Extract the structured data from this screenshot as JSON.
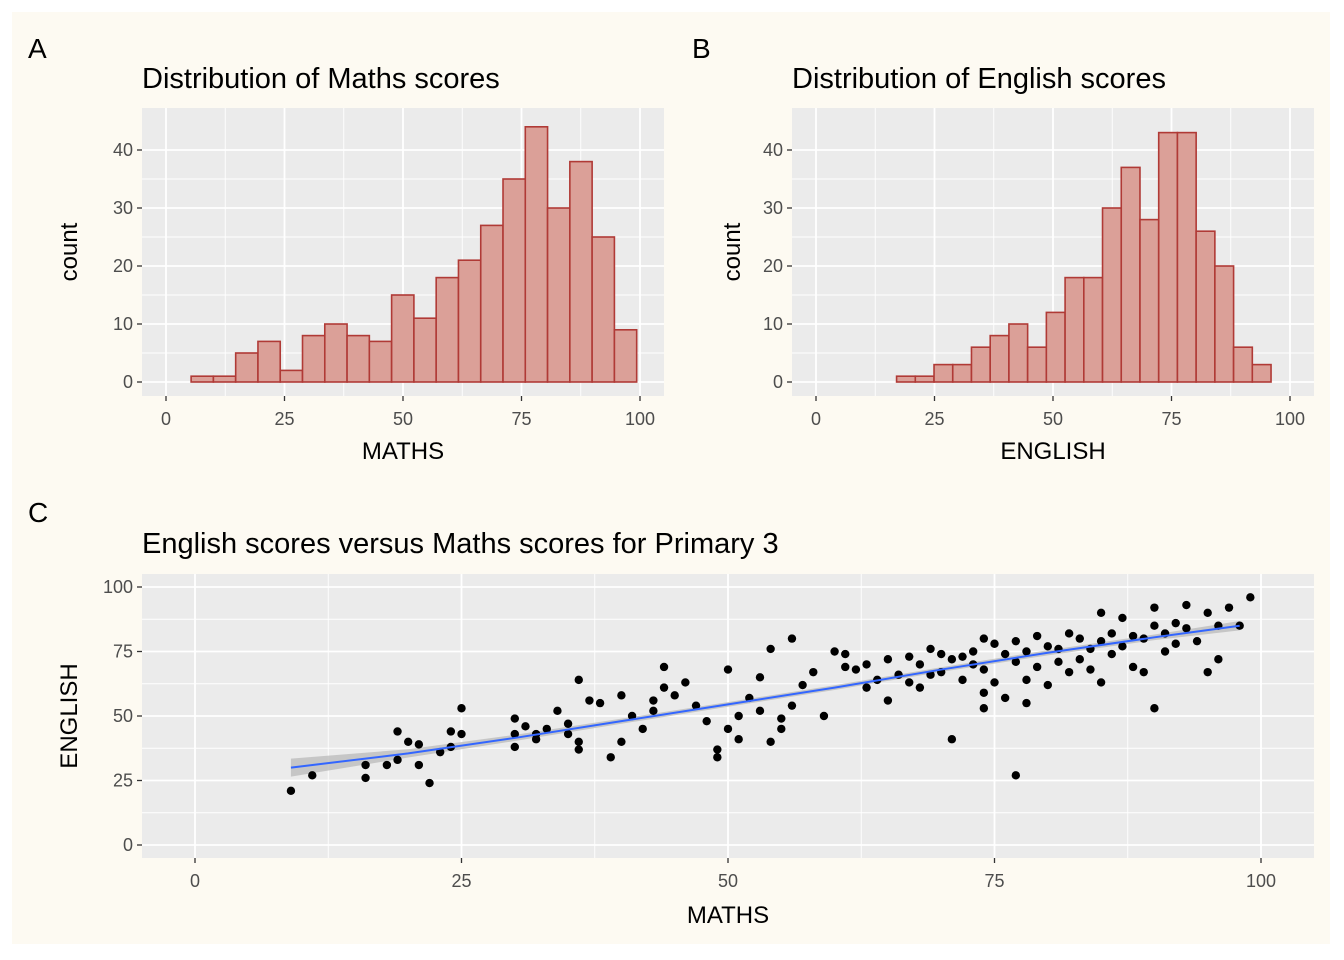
{
  "figure": {
    "background": "#fdfaf2",
    "panel_background": "#ebebeb",
    "grid_color": "#ffffff"
  },
  "chart_data": [
    {
      "type": "bar",
      "subtype": "histogram",
      "tag": "A",
      "title": "Distribution of Maths scores",
      "xlabel": "MATHS",
      "ylabel": "count",
      "xlim": [
        0,
        100
      ],
      "ylim": [
        0,
        45
      ],
      "xticks": [
        "0",
        "25",
        "50",
        "75",
        "100"
      ],
      "yticks": [
        "0",
        "10",
        "20",
        "30",
        "40"
      ],
      "bin_width": 4.7,
      "bins": [
        {
          "x0": 5.3,
          "count": 1
        },
        {
          "x0": 10.0,
          "count": 1
        },
        {
          "x0": 14.7,
          "count": 5
        },
        {
          "x0": 19.4,
          "count": 7
        },
        {
          "x0": 24.1,
          "count": 2
        },
        {
          "x0": 28.8,
          "count": 8
        },
        {
          "x0": 33.5,
          "count": 10
        },
        {
          "x0": 38.2,
          "count": 8
        },
        {
          "x0": 42.9,
          "count": 7
        },
        {
          "x0": 47.6,
          "count": 15
        },
        {
          "x0": 52.3,
          "count": 11
        },
        {
          "x0": 57.0,
          "count": 18
        },
        {
          "x0": 61.7,
          "count": 21
        },
        {
          "x0": 66.4,
          "count": 27
        },
        {
          "x0": 71.1,
          "count": 35
        },
        {
          "x0": 75.8,
          "count": 44
        },
        {
          "x0": 80.5,
          "count": 30
        },
        {
          "x0": 85.2,
          "count": 38
        },
        {
          "x0": 89.9,
          "count": 25
        },
        {
          "x0": 94.6,
          "count": 9
        }
      ],
      "fill": "#dba098",
      "stroke": "#b03a36",
      "grid": true
    },
    {
      "type": "bar",
      "subtype": "histogram",
      "tag": "B",
      "title": "Distribution of English scores",
      "xlabel": "ENGLISH",
      "ylabel": "count",
      "xlim": [
        0,
        100
      ],
      "ylim": [
        0,
        45
      ],
      "xticks": [
        "0",
        "25",
        "50",
        "75",
        "100"
      ],
      "yticks": [
        "0",
        "10",
        "20",
        "30",
        "40"
      ],
      "bin_width": 3.95,
      "bins": [
        {
          "x0": 17.0,
          "count": 1
        },
        {
          "x0": 20.95,
          "count": 1
        },
        {
          "x0": 24.9,
          "count": 3
        },
        {
          "x0": 28.85,
          "count": 3
        },
        {
          "x0": 32.8,
          "count": 6
        },
        {
          "x0": 36.75,
          "count": 8
        },
        {
          "x0": 40.7,
          "count": 10
        },
        {
          "x0": 44.65,
          "count": 6
        },
        {
          "x0": 48.6,
          "count": 12
        },
        {
          "x0": 52.55,
          "count": 18
        },
        {
          "x0": 56.5,
          "count": 18
        },
        {
          "x0": 60.45,
          "count": 30
        },
        {
          "x0": 64.4,
          "count": 37
        },
        {
          "x0": 68.35,
          "count": 28
        },
        {
          "x0": 72.3,
          "count": 43
        },
        {
          "x0": 76.25,
          "count": 43
        },
        {
          "x0": 80.2,
          "count": 26
        },
        {
          "x0": 84.15,
          "count": 20
        },
        {
          "x0": 88.1,
          "count": 6
        },
        {
          "x0": 92.05,
          "count": 3
        }
      ],
      "fill": "#dba098",
      "stroke": "#b03a36",
      "grid": true
    },
    {
      "type": "scatter",
      "tag": "C",
      "title": "English scores versus Maths scores for Primary 3",
      "xlabel": "MATHS",
      "ylabel": "ENGLISH",
      "xlim": [
        0,
        100
      ],
      "ylim": [
        0,
        100
      ],
      "xticks": [
        "0",
        "25",
        "50",
        "75",
        "100"
      ],
      "yticks": [
        "0",
        "25",
        "50",
        "75",
        "100"
      ],
      "point_color": "#000000",
      "smooth_color": "#3366ff",
      "ribbon_color": "#bdbdbd",
      "grid": true,
      "points": [
        [
          9,
          21
        ],
        [
          11,
          27
        ],
        [
          16,
          31
        ],
        [
          16,
          26
        ],
        [
          18,
          31
        ],
        [
          19,
          33
        ],
        [
          19,
          44
        ],
        [
          20,
          40
        ],
        [
          21,
          39
        ],
        [
          21,
          31
        ],
        [
          22,
          24
        ],
        [
          23,
          36
        ],
        [
          24,
          38
        ],
        [
          24,
          44
        ],
        [
          25,
          43
        ],
        [
          25,
          53
        ],
        [
          30,
          49
        ],
        [
          30,
          43
        ],
        [
          30,
          38
        ],
        [
          31,
          46
        ],
        [
          32,
          43
        ],
        [
          32,
          41
        ],
        [
          33,
          45
        ],
        [
          34,
          52
        ],
        [
          35,
          47
        ],
        [
          35,
          43
        ],
        [
          36,
          40
        ],
        [
          36,
          37
        ],
        [
          36,
          64
        ],
        [
          37,
          56
        ],
        [
          38,
          55
        ],
        [
          39,
          34
        ],
        [
          40,
          58
        ],
        [
          40,
          40
        ],
        [
          41,
          50
        ],
        [
          42,
          45
        ],
        [
          43,
          52
        ],
        [
          43,
          56
        ],
        [
          44,
          69
        ],
        [
          44,
          61
        ],
        [
          45,
          58
        ],
        [
          46,
          63
        ],
        [
          47,
          54
        ],
        [
          48,
          48
        ],
        [
          49,
          37
        ],
        [
          49,
          34
        ],
        [
          50,
          68
        ],
        [
          50,
          45
        ],
        [
          51,
          41
        ],
        [
          51,
          50
        ],
        [
          52,
          57
        ],
        [
          53,
          65
        ],
        [
          53,
          52
        ],
        [
          54,
          76
        ],
        [
          54,
          40
        ],
        [
          55,
          49
        ],
        [
          55,
          45
        ],
        [
          56,
          80
        ],
        [
          56,
          54
        ],
        [
          57,
          62
        ],
        [
          58,
          67
        ],
        [
          59,
          50
        ],
        [
          60,
          75
        ],
        [
          61,
          74
        ],
        [
          61,
          69
        ],
        [
          62,
          68
        ],
        [
          63,
          70
        ],
        [
          63,
          61
        ],
        [
          64,
          64
        ],
        [
          65,
          72
        ],
        [
          65,
          56
        ],
        [
          66,
          66
        ],
        [
          67,
          73
        ],
        [
          67,
          63
        ],
        [
          68,
          70
        ],
        [
          68,
          61
        ],
        [
          69,
          76
        ],
        [
          69,
          66
        ],
        [
          70,
          74
        ],
        [
          70,
          67
        ],
        [
          71,
          72
        ],
        [
          71,
          41
        ],
        [
          72,
          64
        ],
        [
          72,
          73
        ],
        [
          73,
          70
        ],
        [
          73,
          75
        ],
        [
          74,
          80
        ],
        [
          74,
          68
        ],
        [
          74,
          59
        ],
        [
          74,
          53
        ],
        [
          75,
          78
        ],
        [
          75,
          63
        ],
        [
          76,
          74
        ],
        [
          76,
          57
        ],
        [
          77,
          79
        ],
        [
          77,
          71
        ],
        [
          77,
          27
        ],
        [
          78,
          75
        ],
        [
          78,
          64
        ],
        [
          78,
          55
        ],
        [
          79,
          81
        ],
        [
          79,
          69
        ],
        [
          80,
          77
        ],
        [
          80,
          62
        ],
        [
          81,
          76
        ],
        [
          81,
          71
        ],
        [
          82,
          82
        ],
        [
          82,
          67
        ],
        [
          83,
          80
        ],
        [
          83,
          72
        ],
        [
          84,
          76
        ],
        [
          84,
          68
        ],
        [
          85,
          90
        ],
        [
          85,
          79
        ],
        [
          85,
          63
        ],
        [
          86,
          82
        ],
        [
          86,
          74
        ],
        [
          87,
          88
        ],
        [
          87,
          77
        ],
        [
          88,
          81
        ],
        [
          88,
          69
        ],
        [
          89,
          80
        ],
        [
          89,
          67
        ],
        [
          90,
          92
        ],
        [
          90,
          85
        ],
        [
          90,
          53
        ],
        [
          91,
          82
        ],
        [
          91,
          75
        ],
        [
          92,
          86
        ],
        [
          92,
          78
        ],
        [
          93,
          93
        ],
        [
          93,
          84
        ],
        [
          94,
          79
        ],
        [
          95,
          90
        ],
        [
          95,
          67
        ],
        [
          96,
          85
        ],
        [
          96,
          72
        ],
        [
          97,
          92
        ],
        [
          98,
          85
        ],
        [
          99,
          96
        ]
      ],
      "smooth_line": [
        [
          9,
          30
        ],
        [
          20,
          35.5
        ],
        [
          30,
          41.5
        ],
        [
          40,
          48
        ],
        [
          50,
          54.5
        ],
        [
          60,
          61
        ],
        [
          70,
          68
        ],
        [
          80,
          74.5
        ],
        [
          90,
          80.5
        ],
        [
          98,
          85
        ]
      ],
      "ribbon_halfwidth": [
        [
          9,
          3.5
        ],
        [
          20,
          1.6
        ],
        [
          30,
          1.2
        ],
        [
          40,
          1.0
        ],
        [
          50,
          0.9
        ],
        [
          60,
          0.9
        ],
        [
          70,
          0.9
        ],
        [
          80,
          1.0
        ],
        [
          90,
          1.1
        ],
        [
          98,
          1.8
        ]
      ]
    }
  ]
}
